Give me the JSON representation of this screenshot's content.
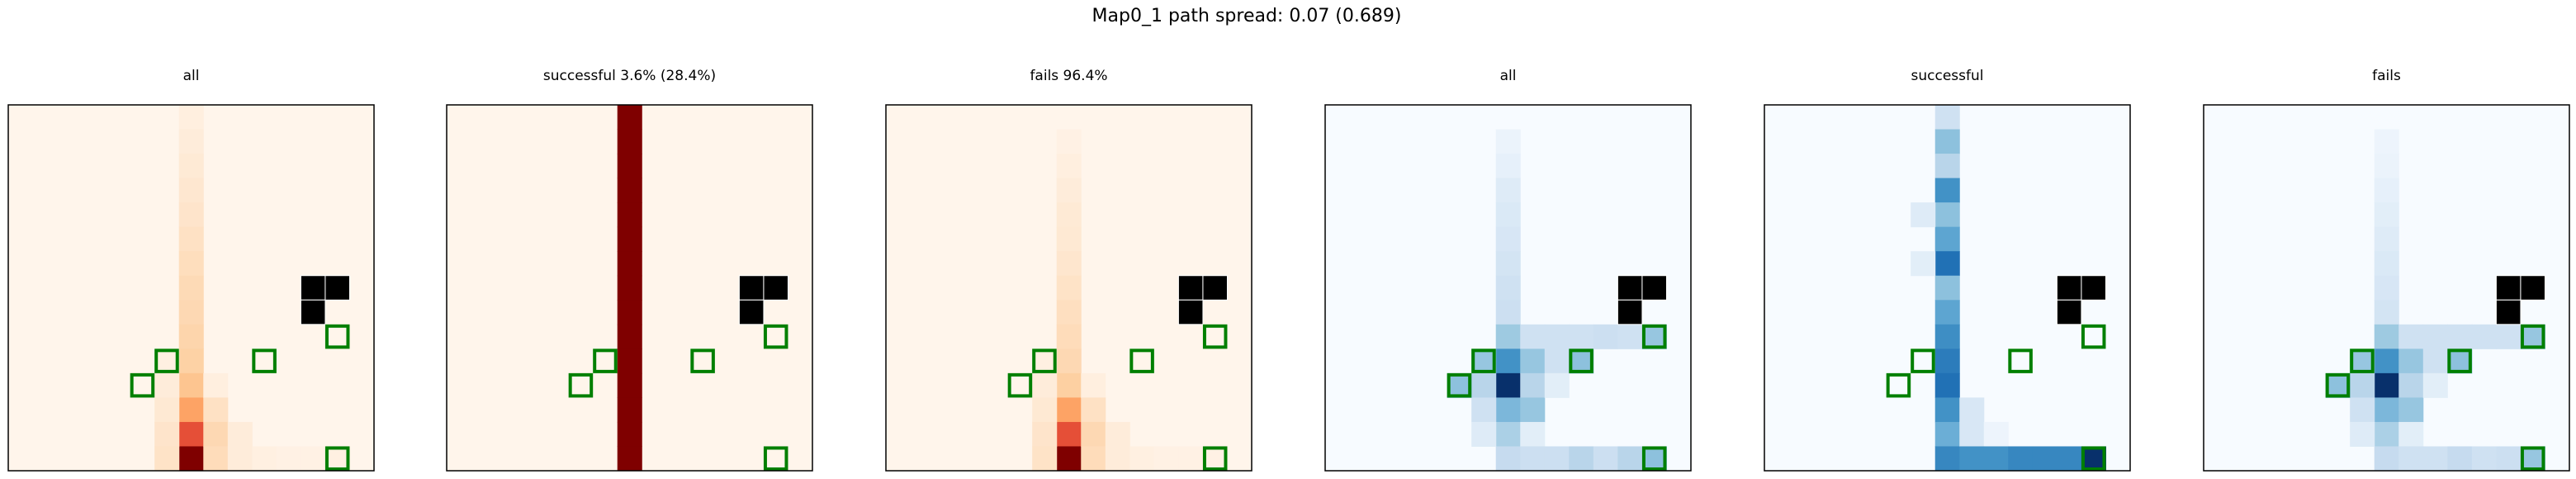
{
  "figure": {
    "title": "Map0_1 path spread: 0.07 (0.689)"
  },
  "chart_data": [
    {
      "type": "heatmap",
      "title": "all",
      "colormap": "Reds",
      "grid": false,
      "ncols": 15,
      "nrows": 15,
      "cells": [
        {
          "x": 7,
          "y": 0,
          "v": 0.05
        },
        {
          "x": 7,
          "y": 1,
          "v": 0.07
        },
        {
          "x": 7,
          "y": 2,
          "v": 0.09
        },
        {
          "x": 7,
          "y": 3,
          "v": 0.11
        },
        {
          "x": 7,
          "y": 4,
          "v": 0.13
        },
        {
          "x": 7,
          "y": 5,
          "v": 0.15
        },
        {
          "x": 7,
          "y": 6,
          "v": 0.17
        },
        {
          "x": 7,
          "y": 7,
          "v": 0.19
        },
        {
          "x": 7,
          "y": 8,
          "v": 0.2
        },
        {
          "x": 7,
          "y": 9,
          "v": 0.22
        },
        {
          "x": 7,
          "y": 10,
          "v": 0.24
        },
        {
          "x": 7,
          "y": 11,
          "v": 0.3
        },
        {
          "x": 7,
          "y": 12,
          "v": 0.45
        },
        {
          "x": 7,
          "y": 13,
          "v": 0.75
        },
        {
          "x": 7,
          "y": 14,
          "v": 1.0
        },
        {
          "x": 6,
          "y": 10,
          "v": 0.04
        },
        {
          "x": 6,
          "y": 11,
          "v": 0.07
        },
        {
          "x": 6,
          "y": 12,
          "v": 0.1
        },
        {
          "x": 6,
          "y": 13,
          "v": 0.13
        },
        {
          "x": 6,
          "y": 14,
          "v": 0.14
        },
        {
          "x": 8,
          "y": 11,
          "v": 0.05
        },
        {
          "x": 8,
          "y": 12,
          "v": 0.15
        },
        {
          "x": 8,
          "y": 13,
          "v": 0.2
        },
        {
          "x": 8,
          "y": 14,
          "v": 0.18
        },
        {
          "x": 9,
          "y": 13,
          "v": 0.07
        },
        {
          "x": 9,
          "y": 14,
          "v": 0.07
        },
        {
          "x": 10,
          "y": 14,
          "v": 0.04
        },
        {
          "x": 11,
          "y": 14,
          "v": 0.03
        },
        {
          "x": 12,
          "y": 14,
          "v": 0.03
        },
        {
          "x": 13,
          "y": 14,
          "v": 0.04
        }
      ],
      "obstacles": [
        {
          "x": 12,
          "y": 7
        },
        {
          "x": 13,
          "y": 7
        },
        {
          "x": 12,
          "y": 8
        }
      ],
      "markers": [
        {
          "x": 6,
          "y": 10
        },
        {
          "x": 10,
          "y": 10
        },
        {
          "x": 13,
          "y": 9
        },
        {
          "x": 5,
          "y": 11
        },
        {
          "x": 13,
          "y": 14
        }
      ]
    },
    {
      "type": "heatmap",
      "title": "successful 3.6% (28.4%)",
      "colormap": "Reds",
      "grid": false,
      "ncols": 15,
      "nrows": 15,
      "cells": [
        {
          "x": 7,
          "y": 0,
          "v": 1.0
        },
        {
          "x": 7,
          "y": 1,
          "v": 1.0
        },
        {
          "x": 7,
          "y": 2,
          "v": 1.0
        },
        {
          "x": 7,
          "y": 3,
          "v": 1.0
        },
        {
          "x": 7,
          "y": 4,
          "v": 1.0
        },
        {
          "x": 7,
          "y": 5,
          "v": 1.0
        },
        {
          "x": 7,
          "y": 6,
          "v": 1.0
        },
        {
          "x": 7,
          "y": 7,
          "v": 1.0
        },
        {
          "x": 7,
          "y": 8,
          "v": 1.0
        },
        {
          "x": 7,
          "y": 9,
          "v": 1.0
        },
        {
          "x": 7,
          "y": 10,
          "v": 1.0
        },
        {
          "x": 7,
          "y": 11,
          "v": 1.0
        },
        {
          "x": 7,
          "y": 12,
          "v": 1.0
        },
        {
          "x": 7,
          "y": 13,
          "v": 1.0
        },
        {
          "x": 7,
          "y": 14,
          "v": 1.0
        }
      ],
      "obstacles": [
        {
          "x": 12,
          "y": 7
        },
        {
          "x": 13,
          "y": 7
        },
        {
          "x": 12,
          "y": 8
        }
      ],
      "markers": [
        {
          "x": 6,
          "y": 10
        },
        {
          "x": 10,
          "y": 10
        },
        {
          "x": 13,
          "y": 9
        },
        {
          "x": 5,
          "y": 11
        },
        {
          "x": 13,
          "y": 14
        }
      ]
    },
    {
      "type": "heatmap",
      "title": "fails 96.4%",
      "colormap": "Reds",
      "grid": false,
      "ncols": 15,
      "nrows": 15,
      "cells": [
        {
          "x": 7,
          "y": 1,
          "v": 0.03
        },
        {
          "x": 7,
          "y": 2,
          "v": 0.05
        },
        {
          "x": 7,
          "y": 3,
          "v": 0.07
        },
        {
          "x": 7,
          "y": 4,
          "v": 0.09
        },
        {
          "x": 7,
          "y": 5,
          "v": 0.1
        },
        {
          "x": 7,
          "y": 6,
          "v": 0.12
        },
        {
          "x": 7,
          "y": 7,
          "v": 0.14
        },
        {
          "x": 7,
          "y": 8,
          "v": 0.16
        },
        {
          "x": 7,
          "y": 9,
          "v": 0.18
        },
        {
          "x": 7,
          "y": 10,
          "v": 0.2
        },
        {
          "x": 7,
          "y": 11,
          "v": 0.25
        },
        {
          "x": 7,
          "y": 12,
          "v": 0.45
        },
        {
          "x": 7,
          "y": 13,
          "v": 0.75
        },
        {
          "x": 7,
          "y": 14,
          "v": 1.0
        },
        {
          "x": 6,
          "y": 10,
          "v": 0.04
        },
        {
          "x": 6,
          "y": 11,
          "v": 0.07
        },
        {
          "x": 6,
          "y": 12,
          "v": 0.1
        },
        {
          "x": 6,
          "y": 13,
          "v": 0.13
        },
        {
          "x": 6,
          "y": 14,
          "v": 0.14
        },
        {
          "x": 8,
          "y": 11,
          "v": 0.05
        },
        {
          "x": 8,
          "y": 12,
          "v": 0.15
        },
        {
          "x": 8,
          "y": 13,
          "v": 0.2
        },
        {
          "x": 8,
          "y": 14,
          "v": 0.18
        },
        {
          "x": 9,
          "y": 13,
          "v": 0.07
        },
        {
          "x": 9,
          "y": 14,
          "v": 0.07
        },
        {
          "x": 10,
          "y": 14,
          "v": 0.04
        },
        {
          "x": 11,
          "y": 14,
          "v": 0.03
        },
        {
          "x": 12,
          "y": 14,
          "v": 0.03
        },
        {
          "x": 13,
          "y": 14,
          "v": 0.03
        }
      ],
      "obstacles": [
        {
          "x": 12,
          "y": 7
        },
        {
          "x": 13,
          "y": 7
        },
        {
          "x": 12,
          "y": 8
        }
      ],
      "markers": [
        {
          "x": 6,
          "y": 10
        },
        {
          "x": 10,
          "y": 10
        },
        {
          "x": 13,
          "y": 9
        },
        {
          "x": 5,
          "y": 11
        },
        {
          "x": 13,
          "y": 14
        }
      ]
    },
    {
      "type": "heatmap",
      "title": "all",
      "colormap": "Blues",
      "grid": false,
      "ncols": 15,
      "nrows": 15,
      "cells": [
        {
          "x": 7,
          "y": 1,
          "v": 0.06
        },
        {
          "x": 7,
          "y": 2,
          "v": 0.08
        },
        {
          "x": 7,
          "y": 3,
          "v": 0.12
        },
        {
          "x": 7,
          "y": 4,
          "v": 0.14
        },
        {
          "x": 7,
          "y": 5,
          "v": 0.16
        },
        {
          "x": 7,
          "y": 6,
          "v": 0.18
        },
        {
          "x": 7,
          "y": 7,
          "v": 0.2
        },
        {
          "x": 7,
          "y": 8,
          "v": 0.22
        },
        {
          "x": 7,
          "y": 9,
          "v": 0.4
        },
        {
          "x": 7,
          "y": 10,
          "v": 0.7
        },
        {
          "x": 7,
          "y": 11,
          "v": 1.0
        },
        {
          "x": 7,
          "y": 12,
          "v": 0.5
        },
        {
          "x": 7,
          "y": 13,
          "v": 0.35
        },
        {
          "x": 7,
          "y": 14,
          "v": 0.25
        },
        {
          "x": 6,
          "y": 10,
          "v": 0.42
        },
        {
          "x": 6,
          "y": 11,
          "v": 0.3
        },
        {
          "x": 6,
          "y": 12,
          "v": 0.2
        },
        {
          "x": 6,
          "y": 13,
          "v": 0.12
        },
        {
          "x": 5,
          "y": 11,
          "v": 0.45
        },
        {
          "x": 8,
          "y": 9,
          "v": 0.2
        },
        {
          "x": 8,
          "y": 10,
          "v": 0.42
        },
        {
          "x": 8,
          "y": 11,
          "v": 0.3
        },
        {
          "x": 8,
          "y": 12,
          "v": 0.42
        },
        {
          "x": 8,
          "y": 13,
          "v": 0.1
        },
        {
          "x": 8,
          "y": 14,
          "v": 0.22
        },
        {
          "x": 9,
          "y": 9,
          "v": 0.2
        },
        {
          "x": 9,
          "y": 10,
          "v": 0.2
        },
        {
          "x": 9,
          "y": 11,
          "v": 0.1
        },
        {
          "x": 9,
          "y": 14,
          "v": 0.22
        },
        {
          "x": 10,
          "y": 9,
          "v": 0.2
        },
        {
          "x": 10,
          "y": 10,
          "v": 0.45
        },
        {
          "x": 10,
          "y": 14,
          "v": 0.3
        },
        {
          "x": 11,
          "y": 9,
          "v": 0.22
        },
        {
          "x": 11,
          "y": 14,
          "v": 0.22
        },
        {
          "x": 12,
          "y": 9,
          "v": 0.2
        },
        {
          "x": 12,
          "y": 14,
          "v": 0.3
        },
        {
          "x": 13,
          "y": 9,
          "v": 0.42
        },
        {
          "x": 13,
          "y": 14,
          "v": 0.45
        }
      ],
      "obstacles": [
        {
          "x": 12,
          "y": 7
        },
        {
          "x": 13,
          "y": 7
        },
        {
          "x": 12,
          "y": 8
        }
      ],
      "markers": [
        {
          "x": 6,
          "y": 10
        },
        {
          "x": 10,
          "y": 10
        },
        {
          "x": 13,
          "y": 9
        },
        {
          "x": 5,
          "y": 11
        },
        {
          "x": 13,
          "y": 14
        }
      ]
    },
    {
      "type": "heatmap",
      "title": "successful",
      "colormap": "Blues",
      "grid": false,
      "ncols": 15,
      "nrows": 15,
      "cells": [
        {
          "x": 7,
          "y": 0,
          "v": 0.2
        },
        {
          "x": 7,
          "y": 1,
          "v": 0.45
        },
        {
          "x": 7,
          "y": 2,
          "v": 0.3
        },
        {
          "x": 7,
          "y": 3,
          "v": 0.7
        },
        {
          "x": 7,
          "y": 4,
          "v": 0.45
        },
        {
          "x": 7,
          "y": 5,
          "v": 0.6
        },
        {
          "x": 7,
          "y": 6,
          "v": 0.85
        },
        {
          "x": 7,
          "y": 7,
          "v": 0.45
        },
        {
          "x": 7,
          "y": 8,
          "v": 0.6
        },
        {
          "x": 7,
          "y": 9,
          "v": 0.72
        },
        {
          "x": 7,
          "y": 10,
          "v": 0.8
        },
        {
          "x": 7,
          "y": 11,
          "v": 0.85
        },
        {
          "x": 7,
          "y": 12,
          "v": 0.7
        },
        {
          "x": 7,
          "y": 13,
          "v": 0.55
        },
        {
          "x": 7,
          "y": 14,
          "v": 0.75
        },
        {
          "x": 6,
          "y": 4,
          "v": 0.12
        },
        {
          "x": 6,
          "y": 6,
          "v": 0.1
        },
        {
          "x": 8,
          "y": 12,
          "v": 0.15
        },
        {
          "x": 8,
          "y": 13,
          "v": 0.15
        },
        {
          "x": 9,
          "y": 13,
          "v": 0.05
        },
        {
          "x": 8,
          "y": 14,
          "v": 0.7
        },
        {
          "x": 9,
          "y": 14,
          "v": 0.7
        },
        {
          "x": 10,
          "y": 14,
          "v": 0.75
        },
        {
          "x": 11,
          "y": 14,
          "v": 0.75
        },
        {
          "x": 12,
          "y": 14,
          "v": 0.75
        },
        {
          "x": 13,
          "y": 14,
          "v": 1.0
        }
      ],
      "obstacles": [
        {
          "x": 12,
          "y": 7
        },
        {
          "x": 13,
          "y": 7
        },
        {
          "x": 12,
          "y": 8
        }
      ],
      "markers": [
        {
          "x": 6,
          "y": 10
        },
        {
          "x": 10,
          "y": 10
        },
        {
          "x": 13,
          "y": 9
        },
        {
          "x": 5,
          "y": 11
        },
        {
          "x": 13,
          "y": 14
        }
      ]
    },
    {
      "type": "heatmap",
      "title": "fails",
      "colormap": "Blues",
      "grid": false,
      "ncols": 15,
      "nrows": 15,
      "cells": [
        {
          "x": 7,
          "y": 1,
          "v": 0.05
        },
        {
          "x": 7,
          "y": 2,
          "v": 0.06
        },
        {
          "x": 7,
          "y": 3,
          "v": 0.08
        },
        {
          "x": 7,
          "y": 4,
          "v": 0.1
        },
        {
          "x": 7,
          "y": 5,
          "v": 0.12
        },
        {
          "x": 7,
          "y": 6,
          "v": 0.14
        },
        {
          "x": 7,
          "y": 7,
          "v": 0.16
        },
        {
          "x": 7,
          "y": 8,
          "v": 0.18
        },
        {
          "x": 7,
          "y": 9,
          "v": 0.4
        },
        {
          "x": 7,
          "y": 10,
          "v": 0.7
        },
        {
          "x": 7,
          "y": 11,
          "v": 1.0
        },
        {
          "x": 7,
          "y": 12,
          "v": 0.5
        },
        {
          "x": 7,
          "y": 13,
          "v": 0.35
        },
        {
          "x": 7,
          "y": 14,
          "v": 0.25
        },
        {
          "x": 6,
          "y": 10,
          "v": 0.42
        },
        {
          "x": 6,
          "y": 11,
          "v": 0.3
        },
        {
          "x": 6,
          "y": 12,
          "v": 0.2
        },
        {
          "x": 6,
          "y": 13,
          "v": 0.12
        },
        {
          "x": 5,
          "y": 11,
          "v": 0.45
        },
        {
          "x": 8,
          "y": 9,
          "v": 0.2
        },
        {
          "x": 8,
          "y": 10,
          "v": 0.42
        },
        {
          "x": 8,
          "y": 11,
          "v": 0.3
        },
        {
          "x": 8,
          "y": 12,
          "v": 0.42
        },
        {
          "x": 8,
          "y": 13,
          "v": 0.1
        },
        {
          "x": 8,
          "y": 14,
          "v": 0.2
        },
        {
          "x": 9,
          "y": 9,
          "v": 0.2
        },
        {
          "x": 9,
          "y": 10,
          "v": 0.2
        },
        {
          "x": 9,
          "y": 11,
          "v": 0.1
        },
        {
          "x": 9,
          "y": 14,
          "v": 0.2
        },
        {
          "x": 10,
          "y": 9,
          "v": 0.2
        },
        {
          "x": 10,
          "y": 10,
          "v": 0.45
        },
        {
          "x": 10,
          "y": 14,
          "v": 0.25
        },
        {
          "x": 11,
          "y": 9,
          "v": 0.2
        },
        {
          "x": 11,
          "y": 14,
          "v": 0.2
        },
        {
          "x": 12,
          "y": 9,
          "v": 0.2
        },
        {
          "x": 12,
          "y": 14,
          "v": 0.22
        },
        {
          "x": 13,
          "y": 9,
          "v": 0.42
        },
        {
          "x": 13,
          "y": 14,
          "v": 0.42
        }
      ],
      "obstacles": [
        {
          "x": 12,
          "y": 7
        },
        {
          "x": 13,
          "y": 7
        },
        {
          "x": 12,
          "y": 8
        }
      ],
      "markers": [
        {
          "x": 6,
          "y": 10
        },
        {
          "x": 10,
          "y": 10
        },
        {
          "x": 13,
          "y": 9
        },
        {
          "x": 5,
          "y": 11
        },
        {
          "x": 13,
          "y": 14
        }
      ]
    }
  ],
  "colors": {
    "reds_low": "#fff5eb",
    "reds_high": "#7f0000",
    "blues_low": "#f7fbff",
    "blues_high": "#08306b",
    "obstacle": "#000000",
    "marker": "#007f00",
    "axes_frame": "#000000"
  }
}
